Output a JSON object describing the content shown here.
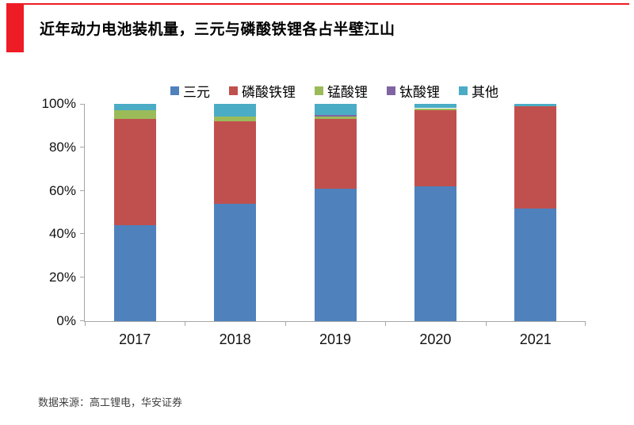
{
  "header": {
    "title": "近年动力电池装机量，三元与磷酸铁锂各占半壁江山"
  },
  "footer": {
    "source": "数据来源：高工锂电，华安证券"
  },
  "chart_data": {
    "type": "bar",
    "stacked": true,
    "percent": true,
    "title": "",
    "xlabel": "",
    "ylabel": "",
    "ylim": [
      0,
      100
    ],
    "ytick_labels": [
      "0%",
      "20%",
      "40%",
      "60%",
      "80%",
      "100%"
    ],
    "legend_position": "top",
    "grid": false,
    "categories": [
      "2017",
      "2018",
      "2019",
      "2020",
      "2021"
    ],
    "series": [
      {
        "name": "三元",
        "color": "#4F81BD",
        "values": [
          44,
          54,
          61,
          62,
          52
        ]
      },
      {
        "name": "磷酸铁锂",
        "color": "#C0504D",
        "values": [
          49,
          38,
          32,
          35,
          47
        ]
      },
      {
        "name": "锰酸锂",
        "color": "#9BBB59",
        "values": [
          4,
          2,
          1,
          1,
          0
        ]
      },
      {
        "name": "钛酸锂",
        "color": "#8064A2",
        "values": [
          0,
          0,
          1,
          0,
          0
        ]
      },
      {
        "name": "其他",
        "color": "#4BACC6",
        "values": [
          3,
          6,
          5,
          2,
          1
        ]
      }
    ],
    "colors": {
      "accent_red": "#EE1C25",
      "axis_gray": "#A6A6A6"
    }
  }
}
